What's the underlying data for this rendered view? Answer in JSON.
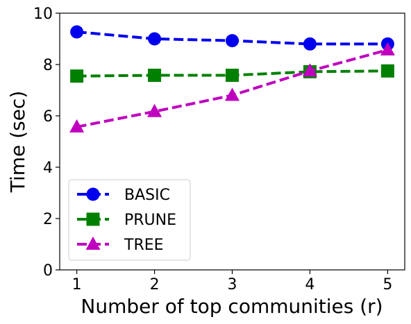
{
  "chart_data": {
    "type": "line",
    "title": "",
    "xlabel": "Number of top communities (r)",
    "ylabel": "Time (sec)",
    "x": [
      1,
      2,
      3,
      4,
      5
    ],
    "xticks": [
      "1",
      "2",
      "3",
      "4",
      "5"
    ],
    "yticks": [
      "0",
      "2",
      "4",
      "6",
      "8",
      "10"
    ],
    "xlim": [
      0.78,
      5.22
    ],
    "ylim": [
      0,
      10
    ],
    "grid": false,
    "legend_position": "lower-left",
    "series": [
      {
        "name": "BASIC",
        "values": [
          9.27,
          9.0,
          8.93,
          8.8,
          8.8
        ],
        "color": "#0000ee",
        "marker": "circle",
        "line": "dashed"
      },
      {
        "name": "PRUNE",
        "values": [
          7.55,
          7.58,
          7.58,
          7.72,
          7.75
        ],
        "color": "#008000",
        "marker": "square",
        "line": "dashed"
      },
      {
        "name": "TREE",
        "values": [
          5.57,
          6.17,
          6.8,
          7.75,
          8.57
        ],
        "color": "#bf00bf",
        "marker": "triangle-up",
        "line": "dashed"
      }
    ]
  }
}
